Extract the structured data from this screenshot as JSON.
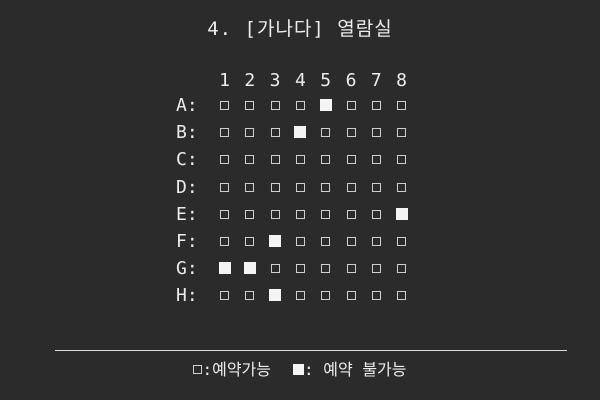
{
  "title": "4. [가나다] 열람실",
  "columns": [
    "1",
    "2",
    "3",
    "4",
    "5",
    "6",
    "7",
    "8"
  ],
  "rows": [
    {
      "label": "A:",
      "seats": [
        false,
        false,
        false,
        false,
        true,
        false,
        false,
        false
      ]
    },
    {
      "label": "B:",
      "seats": [
        false,
        false,
        false,
        true,
        false,
        false,
        false,
        false
      ]
    },
    {
      "label": "C:",
      "seats": [
        false,
        false,
        false,
        false,
        false,
        false,
        false,
        false
      ]
    },
    {
      "label": "D:",
      "seats": [
        false,
        false,
        false,
        false,
        false,
        false,
        false,
        false
      ]
    },
    {
      "label": "E:",
      "seats": [
        false,
        false,
        false,
        false,
        false,
        false,
        false,
        true
      ]
    },
    {
      "label": "F:",
      "seats": [
        false,
        false,
        true,
        false,
        false,
        false,
        false,
        false
      ]
    },
    {
      "label": "G:",
      "seats": [
        true,
        true,
        false,
        false,
        false,
        false,
        false,
        false
      ]
    },
    {
      "label": "H:",
      "seats": [
        false,
        false,
        true,
        false,
        false,
        false,
        false,
        false
      ]
    }
  ],
  "legend": {
    "available_label": ":예약가능",
    "unavailable_label": ": 예약 불가능"
  },
  "colors": {
    "background": "#2b2b2b",
    "text": "#ececec",
    "seat_taken": "#f4f4f4"
  }
}
